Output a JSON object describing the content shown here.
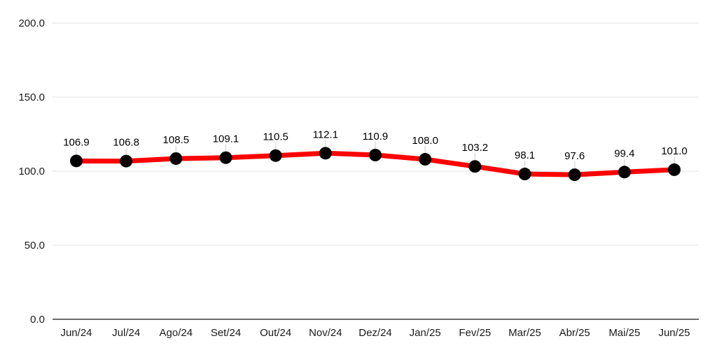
{
  "chart_data": {
    "type": "line",
    "title": "",
    "xlabel": "",
    "ylabel": "",
    "categories": [
      "Jun/24",
      "Jul/24",
      "Ago/24",
      "Set/24",
      "Out/24",
      "Nov/24",
      "Dez/24",
      "Jan/25",
      "Fev/25",
      "Mar/25",
      "Abr/25",
      "Mai/25",
      "Jun/25"
    ],
    "series": [
      {
        "name": "series-1",
        "values": [
          106.9,
          106.8,
          108.5,
          109.1,
          110.5,
          112.1,
          110.9,
          108.0,
          103.2,
          98.1,
          97.6,
          99.4,
          101.0
        ],
        "data_labels": [
          "106.9",
          "106.8",
          "108.5",
          "109.1",
          "110.5",
          "112.1",
          "110.9",
          "108.0",
          "103.2",
          "98.1",
          "97.6",
          "99.4",
          "101.0"
        ]
      }
    ],
    "ylim": [
      0,
      200
    ],
    "y_ticks": [
      0,
      50,
      100,
      150,
      200
    ],
    "y_tick_labels": [
      "0.0",
      "50.0",
      "100.0",
      "150.0",
      "200.0"
    ],
    "grid": true,
    "legend_position": "none",
    "colors": {
      "line": "#ff0000",
      "marker": "#000000",
      "gridline": "#e2e2e2",
      "axis_line": "#6b6b6b",
      "tick_text": "#1a1a1a",
      "label_text": "#000000",
      "leader_line": "#dcdcdc",
      "background": "#ffffff"
    }
  }
}
